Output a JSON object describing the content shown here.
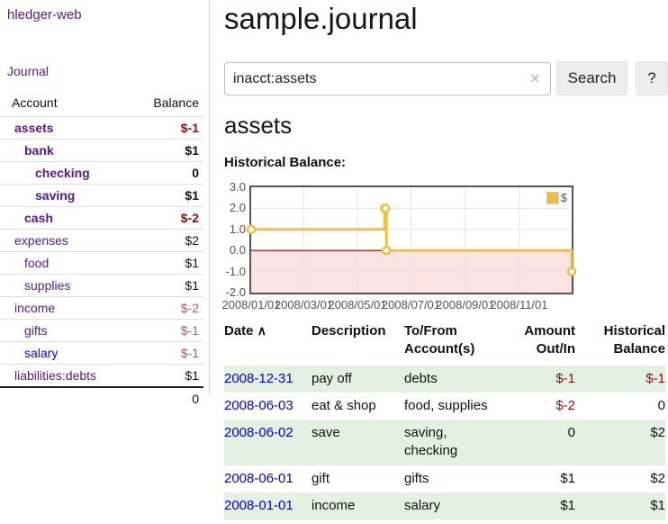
{
  "app": {
    "brand": "hledger-web"
  },
  "sidebar": {
    "nav": {
      "journal_label": "Journal"
    },
    "accounts_table": {
      "headers": {
        "account": "Account",
        "balance": "Balance"
      },
      "rows": [
        {
          "name": "assets",
          "balance": "$-1"
        },
        {
          "name": "bank",
          "balance": "$1"
        },
        {
          "name": "checking",
          "balance": "0"
        },
        {
          "name": "saving",
          "balance": "$1"
        },
        {
          "name": "cash",
          "balance": "$-2"
        },
        {
          "name": "expenses",
          "balance": "$2"
        },
        {
          "name": "food",
          "balance": "$1"
        },
        {
          "name": "supplies",
          "balance": "$1"
        },
        {
          "name": "income",
          "balance": "$-2"
        },
        {
          "name": "gifts",
          "balance": "$-1"
        },
        {
          "name": "salary",
          "balance": "$-1"
        },
        {
          "name": "liabilities:debts",
          "balance": "$1"
        }
      ],
      "total": "0"
    }
  },
  "header": {
    "title": "sample.journal"
  },
  "search": {
    "query": "inacct:assets",
    "clear_icon": "×",
    "button_label": "Search",
    "help_label": "?"
  },
  "account_view": {
    "heading": "assets"
  },
  "chart_data": {
    "type": "line",
    "title": "Historical Balance:",
    "xlim": [
      "2008-01-01",
      "2008-12-31"
    ],
    "ylim": [
      -2,
      3
    ],
    "grid": true,
    "legend_position": "top-right",
    "x_ticks": [
      {
        "date": "2008-01-01",
        "label": "2008/01/01"
      },
      {
        "date": "2008-03-01",
        "label": "2008/03/01"
      },
      {
        "date": "2008-05-01",
        "label": "2008/05/01"
      },
      {
        "date": "2008-07-01",
        "label": "2008/07/01"
      },
      {
        "date": "2008-09-01",
        "label": "2008/09/01"
      },
      {
        "date": "2008-11-01",
        "label": "2008/11/01"
      }
    ],
    "y_ticks": [
      {
        "value": 3,
        "label": "3.0"
      },
      {
        "value": 2,
        "label": "2.0"
      },
      {
        "value": 1,
        "label": "1.0"
      },
      {
        "value": 0,
        "label": "0.0"
      },
      {
        "value": -1,
        "label": "-1.0"
      },
      {
        "value": -2,
        "label": "-2.0"
      }
    ],
    "series": [
      {
        "name": "$",
        "color": "#edc240",
        "steps": true,
        "points": [
          [
            "2008-01-01",
            1
          ],
          [
            "2008-06-01",
            2
          ],
          [
            "2008-06-02",
            2
          ],
          [
            "2008-06-03",
            0
          ],
          [
            "2008-12-31",
            -1
          ]
        ]
      }
    ],
    "markings": {
      "negative_region_fill": "#fbe3e3",
      "zero_line_color": "#aa0000",
      "grid_color": "#e3e3e3"
    }
  },
  "transactions": {
    "headers": {
      "date": "Date",
      "sort_icon": "∧",
      "description": "Description",
      "accounts_line1": "To/From",
      "accounts_line2": "Account(s)",
      "amount_line1": "Amount",
      "amount_line2": "Out/In",
      "balance_line1": "Historical",
      "balance_line2": "Balance"
    },
    "rows": [
      {
        "date": "2008-12-31",
        "description": "pay off",
        "accounts": "debts",
        "amount": "$-1",
        "balance": "$-1"
      },
      {
        "date": "2008-06-03",
        "description": "eat & shop",
        "accounts": "food, supplies",
        "amount": "$-2",
        "balance": "0"
      },
      {
        "date": "2008-06-02",
        "description": "save",
        "accounts": "saving, checking",
        "amount": "0",
        "balance": "$2"
      },
      {
        "date": "2008-06-01",
        "description": "gift",
        "accounts": "gifts",
        "amount": "$1",
        "balance": "$2"
      },
      {
        "date": "2008-01-01",
        "description": "income",
        "accounts": "salary",
        "amount": "$1",
        "balance": "$1"
      }
    ]
  },
  "colors": {
    "link_purple": "#551a8b",
    "link_blue": "#0000e0",
    "negative": "#8b1010",
    "negative_muted": "#b25e63",
    "row_alt_green": "#e4f0e2",
    "series_gold": "#edc240",
    "zero_line_red": "#aa0000",
    "negative_region_pink": "#fbe3e3",
    "chart_border_gray": "#545454"
  }
}
